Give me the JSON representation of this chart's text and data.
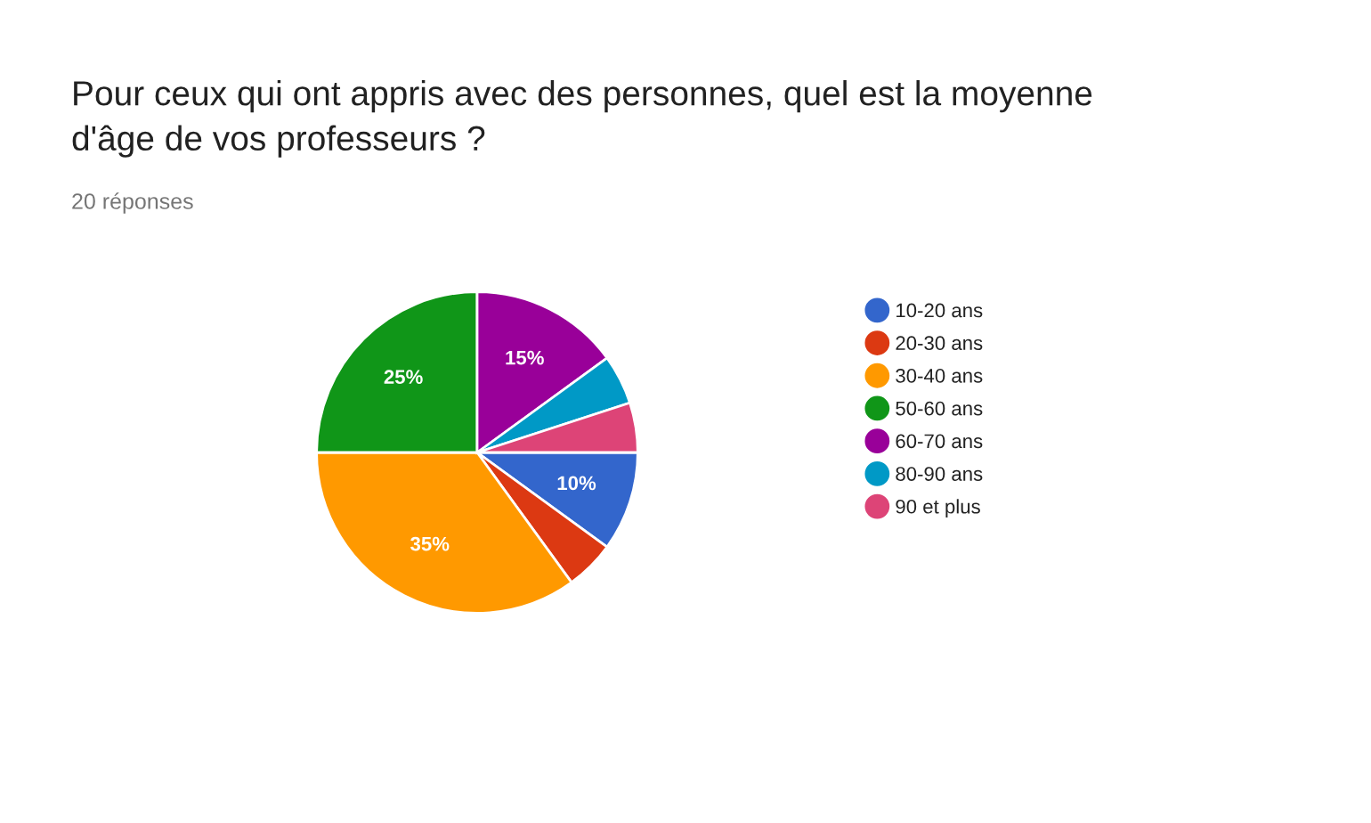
{
  "chart_data": {
    "type": "pie",
    "title": "Pour ceux qui ont appris avec des personnes, quel est la moyenne\nd'âge de vos professeurs ?",
    "subtitle": "20 réponses",
    "categories": [
      "10-20 ans",
      "20-30 ans",
      "30-40 ans",
      "50-60 ans",
      "60-70 ans",
      "80-90 ans",
      "90 et plus"
    ],
    "values": [
      10,
      5,
      35,
      25,
      15,
      5,
      5
    ],
    "value_labels": [
      "10%",
      null,
      "35%",
      "25%",
      "15%",
      null,
      null
    ],
    "colors": [
      "#3366cc",
      "#dc3912",
      "#ff9900",
      "#109618",
      "#990099",
      "#0099c6",
      "#dd4477"
    ],
    "legend": "right"
  }
}
